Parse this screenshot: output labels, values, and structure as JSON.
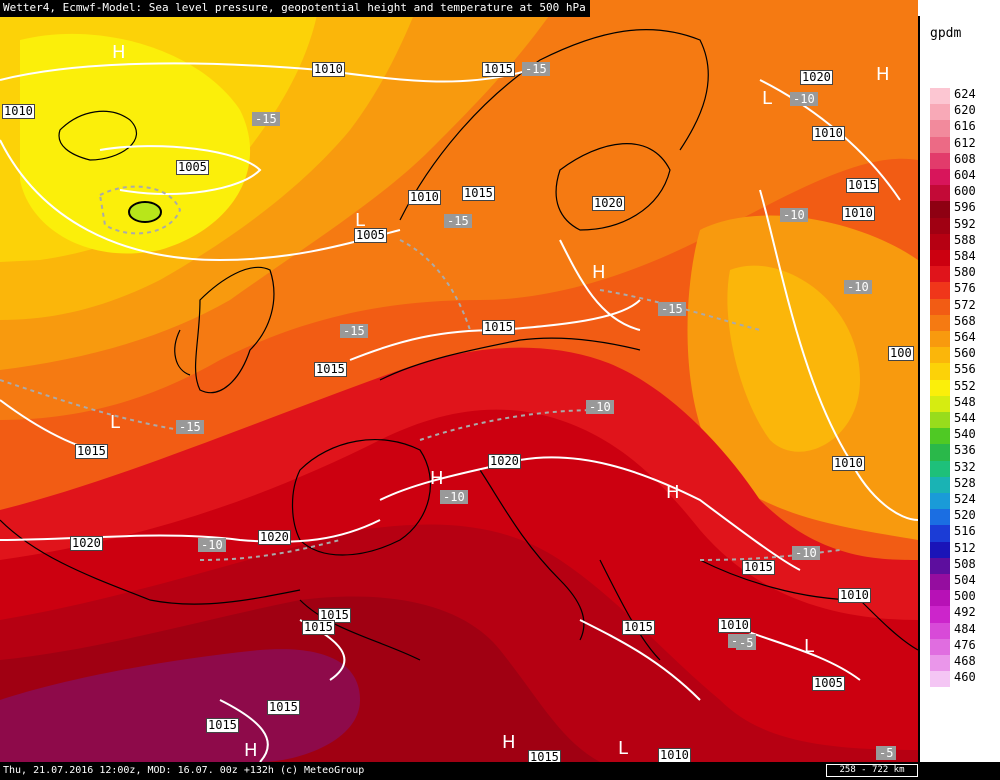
{
  "header": {
    "title": "Wetter4, Ecmwf-Model: Sea level pressure, geopotential height and temperature at 500 hPa"
  },
  "footer": {
    "info": "Thu, 21.07.2016 12:00z, MOD: 16.07. 00z +132h (c) MeteoGroup",
    "scale": "258 - 722 km"
  },
  "legend": {
    "unit": "gpdm",
    "levels": [
      "624",
      "620",
      "616",
      "612",
      "608",
      "604",
      "600",
      "596",
      "592",
      "588",
      "584",
      "580",
      "576",
      "572",
      "568",
      "564",
      "560",
      "556",
      "552",
      "548",
      "544",
      "540",
      "536",
      "532",
      "528",
      "524",
      "520",
      "516",
      "512",
      "508",
      "504",
      "500",
      "492",
      "484",
      "476",
      "468",
      "460"
    ],
    "colors": [
      "#fcc6d2",
      "#f8a9b7",
      "#f28a9c",
      "#ec6a85",
      "#e23b6b",
      "#d8155b",
      "#c30a37",
      "#8e0012",
      "#a00012",
      "#b60012",
      "#cc0010",
      "#e0141b",
      "#f0361a",
      "#f25c14",
      "#f57a12",
      "#f89a0e",
      "#fbb60a",
      "#fcd208",
      "#fbef0a",
      "#d6ec11",
      "#98dc1c",
      "#4fc924",
      "#2ab84a",
      "#1ec07a",
      "#1ab3b4",
      "#1a9bd8",
      "#1b6ee2",
      "#1b3cd6",
      "#1a14b8",
      "#5d0e9e",
      "#950d9f",
      "#b711b6",
      "#cc25cb",
      "#d84ad8",
      "#e06de0",
      "#ea96ea",
      "#f4c6f4"
    ]
  },
  "pressure_labels": [
    {
      "text": "1010"
    },
    {
      "text": "1010"
    },
    {
      "text": "1005"
    },
    {
      "text": "1015"
    },
    {
      "text": "1010"
    },
    {
      "text": "1005"
    },
    {
      "text": "1015"
    },
    {
      "text": "1020"
    },
    {
      "text": "1015"
    },
    {
      "text": "1015"
    },
    {
      "text": "1015"
    },
    {
      "text": "1020"
    },
    {
      "text": "1020"
    },
    {
      "text": "1015"
    },
    {
      "text": "1020"
    },
    {
      "text": "1020"
    },
    {
      "text": "1015"
    },
    {
      "text": "1010"
    },
    {
      "text": "1010"
    },
    {
      "text": "100"
    },
    {
      "text": "1010"
    },
    {
      "text": "1015"
    },
    {
      "text": "1010"
    },
    {
      "text": "1015"
    },
    {
      "text": "1015"
    },
    {
      "text": "1015"
    },
    {
      "text": "1015"
    },
    {
      "text": "1010"
    },
    {
      "text": "1005"
    },
    {
      "text": "1010"
    },
    {
      "text": "1015"
    }
  ],
  "temp_labels": [
    {
      "text": "-15"
    },
    {
      "text": "-15"
    },
    {
      "text": "-15"
    },
    {
      "text": "-15"
    },
    {
      "text": "-15"
    },
    {
      "text": "-15"
    },
    {
      "text": "-10"
    },
    {
      "text": "-10"
    },
    {
      "text": "-10"
    },
    {
      "text": "-10"
    },
    {
      "text": "-10"
    },
    {
      "text": "-10"
    },
    {
      "text": "-10"
    },
    {
      "text": "-10"
    },
    {
      "text": "-5"
    },
    {
      "text": "-5"
    }
  ],
  "pressure_centers": [
    {
      "text": "H"
    },
    {
      "text": "L"
    },
    {
      "text": "L"
    },
    {
      "text": "H"
    },
    {
      "text": "L"
    },
    {
      "text": "H"
    },
    {
      "text": "H"
    },
    {
      "text": "H"
    },
    {
      "text": "L"
    },
    {
      "text": "H"
    },
    {
      "text": "L"
    },
    {
      "text": "H"
    }
  ]
}
